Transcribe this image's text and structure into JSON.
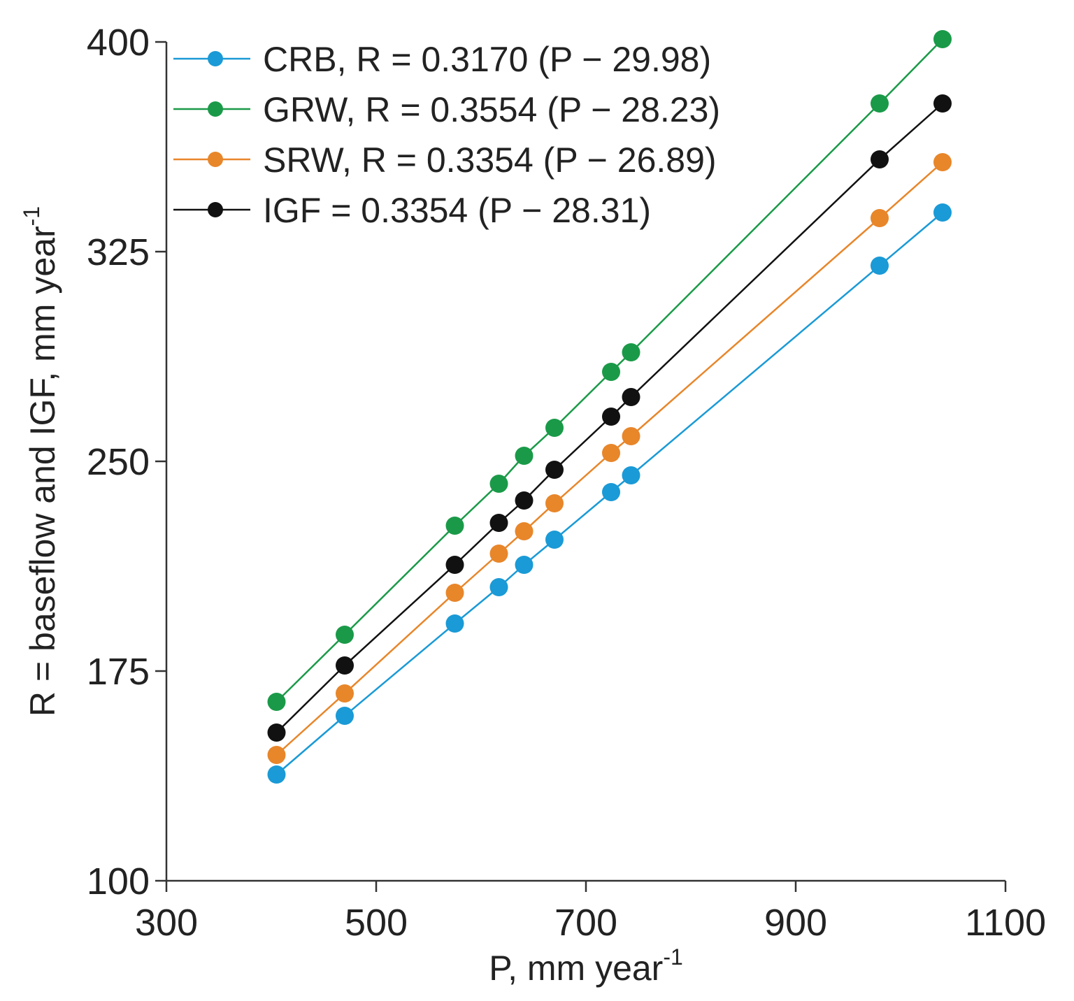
{
  "chart_data": {
    "type": "line",
    "xlabel": "P, mm year",
    "xlabel_sup": "-1",
    "ylabel": "R = baseflow and IGF, mm year",
    "ylabel_sup": "-1",
    "xlim": [
      300,
      1100
    ],
    "ylim": [
      100,
      400
    ],
    "xticks": [
      300,
      500,
      700,
      900,
      1100
    ],
    "yticks": [
      100,
      175,
      250,
      325,
      400
    ],
    "x": [
      405,
      470,
      575,
      617,
      641,
      670,
      724,
      743,
      980,
      1040
    ],
    "series": [
      {
        "name": "CRB, R = 0.3170 (P − 29.98)",
        "color": "#1a9ad6",
        "values": [
          138,
          159,
          192,
          205,
          213,
          222,
          239,
          245,
          320,
          339
        ]
      },
      {
        "name": "GRW, R = 0.3554 (P − 28.23)",
        "color": "#1a9a48",
        "values": [
          164,
          188,
          227,
          242,
          252,
          262,
          282,
          289,
          378,
          401
        ]
      },
      {
        "name": "SRW, R = 0.3354 (P − 26.89)",
        "color": "#e8862a",
        "values": [
          145,
          167,
          203,
          217,
          225,
          235,
          253,
          259,
          337,
          357
        ]
      },
      {
        "name": "IGF = 0.3354 (P − 28.31)",
        "color": "#111111",
        "values": [
          153,
          177,
          213,
          228,
          236,
          247,
          266,
          273,
          358,
          378
        ]
      }
    ],
    "legend_position": "top-left",
    "grid": false
  }
}
